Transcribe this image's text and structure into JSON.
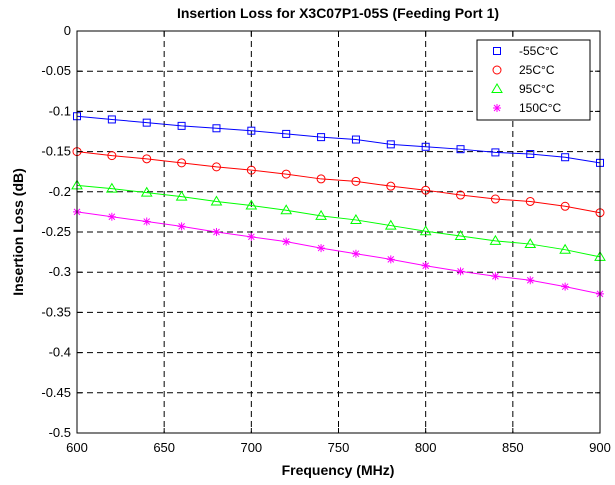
{
  "chart_data": {
    "type": "line",
    "title": "Insertion Loss for X3C07P1-05S (Feeding Port 1)",
    "xlabel": "Frequency (MHz)",
    "ylabel": "Insertion Loss (dB)",
    "xlim": [
      600,
      900
    ],
    "ylim": [
      -0.5,
      0
    ],
    "xticks": [
      600,
      650,
      700,
      750,
      800,
      850,
      900
    ],
    "yticks": [
      0,
      -0.05,
      -0.1,
      -0.15,
      -0.2,
      -0.25,
      -0.3,
      -0.35,
      -0.4,
      -0.45,
      -0.5
    ],
    "xtick_labels": [
      "600",
      "650",
      "700",
      "750",
      "800",
      "850",
      "900"
    ],
    "ytick_labels": [
      "0",
      "-0.05",
      "-0.1",
      "-0.15",
      "-0.2",
      "-0.25",
      "-0.3",
      "-0.35",
      "-0.4",
      "-0.45",
      "-0.5"
    ],
    "grid": true,
    "legend_position": "top-right",
    "x": [
      600,
      620,
      640,
      660,
      680,
      700,
      720,
      740,
      760,
      780,
      800,
      820,
      840,
      860,
      880,
      900
    ],
    "series": [
      {
        "name": "-55C°C",
        "color": "#0000ff",
        "marker": "square",
        "values": [
          -0.106,
          -0.11,
          -0.114,
          -0.118,
          -0.121,
          -0.124,
          -0.128,
          -0.132,
          -0.135,
          -0.141,
          -0.144,
          -0.147,
          -0.151,
          -0.153,
          -0.157,
          -0.164
        ]
      },
      {
        "name": "25C°C",
        "color": "#ff0000",
        "marker": "circle",
        "values": [
          -0.15,
          -0.155,
          -0.159,
          -0.164,
          -0.169,
          -0.173,
          -0.178,
          -0.184,
          -0.187,
          -0.193,
          -0.198,
          -0.204,
          -0.209,
          -0.212,
          -0.218,
          -0.226
        ]
      },
      {
        "name": "95C°C",
        "color": "#00ff00",
        "marker": "triangle",
        "values": [
          -0.192,
          -0.196,
          -0.201,
          -0.206,
          -0.212,
          -0.217,
          -0.223,
          -0.23,
          -0.235,
          -0.242,
          -0.249,
          -0.255,
          -0.261,
          -0.265,
          -0.272,
          -0.281
        ]
      },
      {
        "name": "150C°C",
        "color": "#ff00ff",
        "marker": "asterisk",
        "values": [
          -0.225,
          -0.231,
          -0.237,
          -0.243,
          -0.25,
          -0.256,
          -0.262,
          -0.27,
          -0.277,
          -0.284,
          -0.292,
          -0.299,
          -0.305,
          -0.31,
          -0.318,
          -0.327
        ]
      }
    ]
  }
}
